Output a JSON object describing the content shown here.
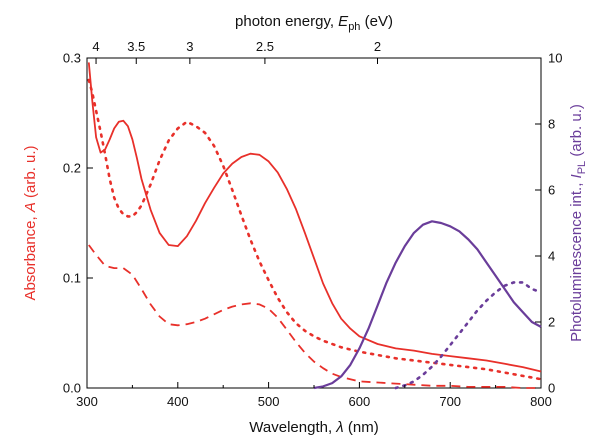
{
  "chart_data": {
    "type": "line",
    "xlabel": "Wavelength, λ (nm)",
    "xlabel_parts": [
      "Wavelength, ",
      "λ",
      " (nm)"
    ],
    "x_range": [
      300,
      800
    ],
    "x_ticks": [
      300,
      400,
      500,
      600,
      700,
      800
    ],
    "left_axis": {
      "label": "Absorbance, A (arb. u.)",
      "label_parts": [
        "Absorbance, ",
        "A",
        " (arb. u.)"
      ],
      "color": "#e8302a",
      "range": [
        0.0,
        0.3
      ],
      "ticks": [
        0.0,
        0.1,
        0.2,
        0.3
      ],
      "tick_labels": [
        "0.0",
        "0.1",
        "0.2",
        "0.3"
      ]
    },
    "right_axis": {
      "label": "Photoluminescence int., I_PL (arb. u.)",
      "label_parts": [
        "Photoluminescence int., ",
        "I",
        "PL",
        " (arb. u.)"
      ],
      "color": "#6a3d9a",
      "range": [
        0,
        10
      ],
      "ticks": [
        0,
        2,
        4,
        6,
        8,
        10
      ],
      "tick_labels": [
        "0",
        "2",
        "4",
        "6",
        "8",
        "10"
      ]
    },
    "top_axis": {
      "label": "photon energy, E_ph (eV)",
      "label_parts": [
        "photon energy, ",
        "E",
        "ph",
        " (eV)"
      ],
      "ticks_eV": [
        4,
        3.5,
        3,
        2.5,
        2
      ],
      "tick_labels": [
        "4",
        "3.5",
        "3",
        "2.5",
        "2"
      ]
    },
    "grid": false,
    "legend": "none",
    "series": [
      {
        "axis": "left",
        "style": "solid",
        "color": "#e8302a",
        "x": [
          302,
          306,
          310,
          315,
          320,
          325,
          330,
          335,
          340,
          345,
          350,
          355,
          360,
          370,
          380,
          390,
          400,
          410,
          420,
          430,
          440,
          450,
          460,
          470,
          480,
          490,
          500,
          510,
          520,
          530,
          540,
          550,
          560,
          570,
          580,
          590,
          600,
          620,
          640,
          660,
          680,
          700,
          720,
          740,
          760,
          780,
          800
        ],
        "y": [
          0.296,
          0.26,
          0.228,
          0.214,
          0.217,
          0.226,
          0.236,
          0.242,
          0.243,
          0.238,
          0.226,
          0.209,
          0.19,
          0.162,
          0.141,
          0.13,
          0.129,
          0.138,
          0.152,
          0.168,
          0.182,
          0.195,
          0.204,
          0.21,
          0.213,
          0.212,
          0.206,
          0.196,
          0.181,
          0.163,
          0.141,
          0.118,
          0.095,
          0.077,
          0.063,
          0.054,
          0.047,
          0.04,
          0.036,
          0.034,
          0.031,
          0.029,
          0.027,
          0.025,
          0.022,
          0.019,
          0.015
        ]
      },
      {
        "axis": "left",
        "style": "dotted",
        "color": "#e8302a",
        "x": [
          302,
          306,
          310,
          315,
          320,
          325,
          330,
          335,
          340,
          345,
          350,
          355,
          360,
          370,
          380,
          390,
          400,
          410,
          420,
          430,
          440,
          450,
          460,
          470,
          480,
          490,
          500,
          510,
          520,
          530,
          540,
          550,
          560,
          570,
          580,
          590,
          600,
          620,
          640,
          660,
          680,
          700,
          720,
          740,
          760,
          780,
          800
        ],
        "y": [
          0.28,
          0.268,
          0.252,
          0.233,
          0.212,
          0.19,
          0.173,
          0.163,
          0.158,
          0.156,
          0.156,
          0.16,
          0.166,
          0.185,
          0.207,
          0.225,
          0.236,
          0.242,
          0.238,
          0.232,
          0.22,
          0.202,
          0.18,
          0.157,
          0.135,
          0.115,
          0.098,
          0.082,
          0.069,
          0.059,
          0.052,
          0.047,
          0.043,
          0.04,
          0.037,
          0.035,
          0.033,
          0.03,
          0.027,
          0.025,
          0.023,
          0.021,
          0.019,
          0.017,
          0.014,
          0.011,
          0.008
        ]
      },
      {
        "axis": "left",
        "style": "dashed",
        "color": "#e8302a",
        "x": [
          302,
          310,
          320,
          330,
          340,
          350,
          360,
          370,
          380,
          390,
          400,
          410,
          420,
          430,
          440,
          450,
          460,
          470,
          480,
          490,
          500,
          510,
          520,
          530,
          540,
          550,
          560,
          570,
          580,
          590,
          600,
          620,
          640,
          660,
          680,
          700,
          720,
          740,
          760,
          780,
          800
        ],
        "y": [
          0.13,
          0.121,
          0.111,
          0.109,
          0.109,
          0.103,
          0.09,
          0.076,
          0.065,
          0.058,
          0.057,
          0.058,
          0.06,
          0.063,
          0.067,
          0.071,
          0.074,
          0.076,
          0.077,
          0.076,
          0.072,
          0.064,
          0.053,
          0.042,
          0.032,
          0.024,
          0.018,
          0.013,
          0.01,
          0.008,
          0.006,
          0.005,
          0.004,
          0.003,
          0.002,
          0.002,
          0.001,
          0.001,
          0.001,
          0.0,
          0.0
        ]
      },
      {
        "axis": "right",
        "style": "solid",
        "color": "#6a3d9a",
        "x": [
          550,
          560,
          570,
          580,
          590,
          600,
          610,
          620,
          630,
          640,
          650,
          660,
          670,
          680,
          690,
          700,
          710,
          720,
          730,
          740,
          750,
          760,
          770,
          780,
          790,
          800
        ],
        "y": [
          0.0,
          0.05,
          0.15,
          0.35,
          0.7,
          1.2,
          1.8,
          2.5,
          3.2,
          3.8,
          4.3,
          4.7,
          4.95,
          5.05,
          5.0,
          4.9,
          4.75,
          4.5,
          4.2,
          3.8,
          3.4,
          3.0,
          2.6,
          2.3,
          2.0,
          1.85
        ]
      },
      {
        "axis": "right",
        "style": "dotted",
        "color": "#6a3d9a",
        "x": [
          640,
          650,
          660,
          670,
          680,
          690,
          700,
          710,
          720,
          730,
          740,
          750,
          760,
          770,
          780,
          790,
          800
        ],
        "y": [
          0.0,
          0.08,
          0.2,
          0.4,
          0.65,
          0.95,
          1.3,
          1.65,
          2.0,
          2.35,
          2.65,
          2.9,
          3.1,
          3.2,
          3.2,
          3.0,
          2.9
        ]
      }
    ]
  }
}
